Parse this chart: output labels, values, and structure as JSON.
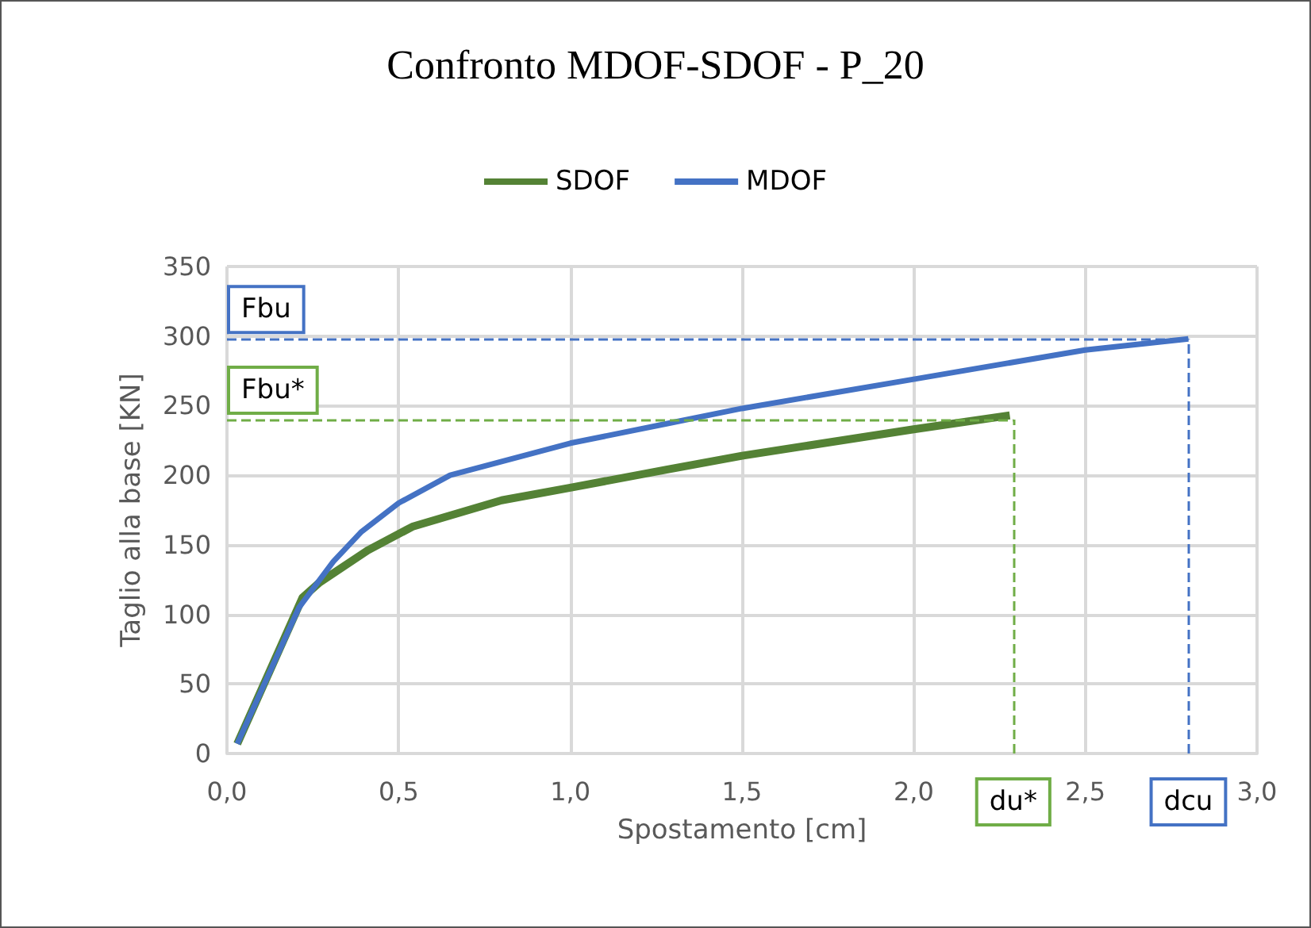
{
  "chart_data": {
    "type": "line",
    "title": "Confronto MDOF-SDOF - P_20",
    "xlabel": "Spostamento [cm]",
    "ylabel": "Taglio alla base [KN]",
    "xlim": [
      0,
      3
    ],
    "xticks": [
      {
        "value": 0,
        "label": "0,0"
      },
      {
        "value": 0.5,
        "label": "0,5"
      },
      {
        "value": 1,
        "label": "1,0"
      },
      {
        "value": 1.5,
        "label": "1,5"
      },
      {
        "value": 2,
        "label": "2,0"
      },
      {
        "value": 2.5,
        "label": "2,5"
      },
      {
        "value": 3,
        "label": "3,0"
      }
    ],
    "ylim": [
      0,
      350
    ],
    "yticks": [
      0,
      50,
      100,
      150,
      200,
      250,
      300,
      350
    ],
    "series": [
      {
        "name": "SDOF",
        "color": "#548235",
        "x": [
          0.03,
          0.22,
          0.27,
          0.41,
          0.54,
          0.8,
          1.0,
          1.28,
          1.5,
          2.0,
          2.28
        ],
        "values": [
          7,
          112,
          123,
          146,
          163,
          182,
          191,
          204,
          214,
          233,
          243
        ]
      },
      {
        "name": "MDOF",
        "color": "#4472c4",
        "x": [
          0.03,
          0.21,
          0.31,
          0.39,
          0.5,
          0.65,
          1.0,
          1.28,
          1.5,
          2.0,
          2.5,
          2.8
        ],
        "values": [
          7,
          105,
          138,
          159,
          180,
          200,
          223,
          237,
          248,
          269,
          290,
          298
        ]
      }
    ],
    "ref_lines": [
      {
        "axis": "y",
        "value": 298,
        "label": "Fbu",
        "color": "#4472c4",
        "line_style": "dashed"
      },
      {
        "axis": "y",
        "value": 240,
        "label": "Fbu*",
        "color": "#70ad47",
        "line_style": "dashed"
      },
      {
        "axis": "x",
        "value": 2.29,
        "label": "du*",
        "color": "#70ad47",
        "line_style": "dashed"
      },
      {
        "axis": "x",
        "value": 2.8,
        "label": "dcu",
        "color": "#4472c4",
        "line_style": "dashed"
      }
    ],
    "grid": true,
    "legend": "top",
    "marker": "none",
    "line_style": "solid"
  }
}
